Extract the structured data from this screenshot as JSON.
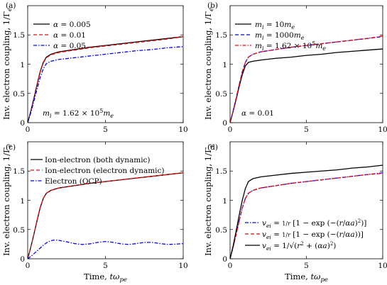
{
  "figure": {
    "x_label": "Time, tω_pe",
    "y_label": "Inv. electron coupling, 1/Γ_e"
  },
  "chart_data": [
    {
      "type": "line",
      "panel_label": "(a)",
      "xlim": [
        0,
        10
      ],
      "ylim": [
        0,
        2
      ],
      "xticks": [
        "0",
        "5",
        "10"
      ],
      "yticks": [
        "0",
        "0.5",
        "1",
        "1.5"
      ],
      "xlabel": "",
      "ylabel": "Inv. electron coupling, 1/Γ_e",
      "legend_position": "top-left",
      "annotation": "m_i = 1.62 × 10^5 m_e",
      "series": [
        {
          "name": "α = 0.005",
          "color": "#000000",
          "dash": "solid",
          "x": [
            0,
            0.2,
            0.4,
            0.6,
            0.8,
            1.0,
            1.2,
            1.5,
            2,
            3,
            4,
            5,
            6,
            7,
            8,
            9,
            10
          ],
          "y": [
            0,
            0.2,
            0.42,
            0.65,
            0.87,
            1.03,
            1.12,
            1.17,
            1.21,
            1.25,
            1.29,
            1.32,
            1.35,
            1.38,
            1.41,
            1.44,
            1.47
          ]
        },
        {
          "name": "α = 0.01",
          "color": "#ff0000",
          "dash": "dashed",
          "x": [
            0,
            0.2,
            0.4,
            0.6,
            0.8,
            1.0,
            1.2,
            1.5,
            2,
            3,
            4,
            5,
            6,
            7,
            8,
            9,
            10
          ],
          "y": [
            0,
            0.19,
            0.41,
            0.64,
            0.86,
            1.02,
            1.11,
            1.16,
            1.2,
            1.24,
            1.28,
            1.31,
            1.34,
            1.37,
            1.4,
            1.43,
            1.47
          ]
        },
        {
          "name": "α = 0.05",
          "color": "#0000ff",
          "dash": "dashdot",
          "x": [
            0,
            0.2,
            0.4,
            0.6,
            0.8,
            1.0,
            1.2,
            1.5,
            2,
            3,
            4,
            5,
            6,
            7,
            8,
            9,
            10
          ],
          "y": [
            0,
            0.17,
            0.37,
            0.57,
            0.77,
            0.92,
            1.01,
            1.05,
            1.08,
            1.11,
            1.14,
            1.17,
            1.2,
            1.23,
            1.25,
            1.28,
            1.3
          ]
        }
      ]
    },
    {
      "type": "line",
      "panel_label": "(b)",
      "xlim": [
        0,
        10
      ],
      "ylim": [
        0,
        2
      ],
      "xticks": [
        "0",
        "5",
        "10"
      ],
      "yticks": [
        "0",
        "0.5",
        "1",
        "1.5"
      ],
      "xlabel": "",
      "ylabel": "Inv. electron coupling, 1/Γ_e",
      "legend_position": "top-left",
      "annotation": "α = 0.01",
      "series": [
        {
          "name": "m_i = 10m_e",
          "color": "#000000",
          "dash": "solid",
          "x": [
            0,
            0.2,
            0.4,
            0.6,
            0.8,
            1.0,
            1.2,
            1.5,
            2,
            3,
            4,
            5,
            6,
            7,
            8,
            9,
            10
          ],
          "y": [
            0,
            0.19,
            0.4,
            0.62,
            0.82,
            0.97,
            1.03,
            1.05,
            1.07,
            1.1,
            1.12,
            1.15,
            1.17,
            1.2,
            1.22,
            1.24,
            1.26
          ]
        },
        {
          "name": "m_i = 1000m_e",
          "color": "#0000ff",
          "dash": "dashed",
          "x": [
            0,
            0.2,
            0.4,
            0.6,
            0.8,
            1.0,
            1.2,
            1.5,
            2,
            3,
            4,
            5,
            6,
            7,
            8,
            9,
            10
          ],
          "y": [
            0,
            0.2,
            0.42,
            0.65,
            0.87,
            1.03,
            1.12,
            1.17,
            1.21,
            1.25,
            1.29,
            1.32,
            1.35,
            1.38,
            1.41,
            1.44,
            1.47
          ]
        },
        {
          "name": "m_i = 1.62 × 10^5 m_e",
          "color": "#ff0000",
          "dash": "dashdot",
          "x": [
            0,
            0.2,
            0.4,
            0.6,
            0.8,
            1.0,
            1.2,
            1.5,
            2,
            3,
            4,
            5,
            6,
            7,
            8,
            9,
            10
          ],
          "y": [
            0,
            0.2,
            0.42,
            0.65,
            0.87,
            1.03,
            1.12,
            1.17,
            1.21,
            1.25,
            1.29,
            1.32,
            1.35,
            1.38,
            1.41,
            1.44,
            1.48
          ]
        }
      ]
    },
    {
      "type": "line",
      "panel_label": "(c)",
      "xlim": [
        0,
        10
      ],
      "ylim": [
        0,
        2
      ],
      "xticks": [
        "0",
        "5",
        "10"
      ],
      "yticks": [
        "0",
        "0.5",
        "1",
        "1.5"
      ],
      "xlabel": "Time, tω_pe",
      "ylabel": "Inv. electron coupling, 1/Γ_e",
      "legend_position": "top-left",
      "series": [
        {
          "name": "Ion-electron (both dynamic)",
          "color": "#000000",
          "dash": "solid",
          "x": [
            0,
            0.2,
            0.4,
            0.6,
            0.8,
            1.0,
            1.2,
            1.5,
            2,
            3,
            4,
            5,
            6,
            7,
            8,
            9,
            10
          ],
          "y": [
            0,
            0.2,
            0.42,
            0.65,
            0.87,
            1.03,
            1.12,
            1.17,
            1.21,
            1.25,
            1.29,
            1.32,
            1.35,
            1.38,
            1.41,
            1.44,
            1.47
          ]
        },
        {
          "name": "Ion-electron (electron dynamic)",
          "color": "#ff0000",
          "dash": "dashed",
          "x": [
            0,
            0.2,
            0.4,
            0.6,
            0.8,
            1.0,
            1.2,
            1.5,
            2,
            3,
            4,
            5,
            6,
            7,
            8,
            9,
            10
          ],
          "y": [
            0,
            0.2,
            0.42,
            0.65,
            0.87,
            1.03,
            1.12,
            1.17,
            1.21,
            1.25,
            1.29,
            1.32,
            1.35,
            1.38,
            1.41,
            1.44,
            1.47
          ]
        },
        {
          "name": "Electron (OCP)",
          "color": "#0000ff",
          "dash": "dashdot",
          "x": [
            0,
            0.25,
            0.5,
            0.75,
            1.0,
            1.25,
            1.5,
            1.75,
            2.0,
            2.5,
            3.0,
            3.5,
            4.0,
            4.5,
            5.0,
            5.5,
            6.0,
            6.5,
            7.0,
            7.5,
            8.0,
            8.5,
            9.0,
            9.5,
            10.0
          ],
          "y": [
            0,
            0.05,
            0.11,
            0.17,
            0.23,
            0.28,
            0.31,
            0.32,
            0.315,
            0.29,
            0.26,
            0.245,
            0.255,
            0.28,
            0.295,
            0.28,
            0.255,
            0.245,
            0.26,
            0.28,
            0.28,
            0.26,
            0.245,
            0.25,
            0.26
          ]
        }
      ]
    },
    {
      "type": "line",
      "panel_label": "(d)",
      "xlim": [
        0,
        10
      ],
      "ylim": [
        0,
        2
      ],
      "xticks": [
        "0",
        "5",
        "10"
      ],
      "yticks": [
        "0",
        "0.5",
        "1",
        "1.5"
      ],
      "xlabel": "Time, tω_pe",
      "ylabel": "Inv. electron coupling, 1/Γ_e",
      "legend_position": "bottom-right",
      "series": [
        {
          "name": "v_ei = (1/r)[1 − exp(−(r/αa)²)]",
          "color": "#0000ff",
          "dash": "dashdot",
          "x": [
            0,
            0.2,
            0.4,
            0.6,
            0.8,
            1.0,
            1.2,
            1.5,
            2,
            3,
            4,
            5,
            6,
            7,
            8,
            9,
            10
          ],
          "y": [
            0,
            0.2,
            0.42,
            0.65,
            0.87,
            1.03,
            1.12,
            1.17,
            1.21,
            1.25,
            1.29,
            1.32,
            1.35,
            1.38,
            1.41,
            1.44,
            1.47
          ]
        },
        {
          "name": "v_ei = (1/r)[1 − exp(−(r/αa))]",
          "color": "#ff0000",
          "dash": "dashed",
          "x": [
            0,
            0.2,
            0.4,
            0.6,
            0.8,
            1.0,
            1.2,
            1.5,
            2,
            3,
            4,
            5,
            6,
            7,
            8,
            9,
            10
          ],
          "y": [
            0,
            0.2,
            0.42,
            0.65,
            0.87,
            1.03,
            1.12,
            1.17,
            1.21,
            1.25,
            1.29,
            1.32,
            1.35,
            1.38,
            1.41,
            1.44,
            1.46
          ]
        },
        {
          "name": "v_ei = 1/√(r² + (αa)²)",
          "color": "#000000",
          "dash": "solid",
          "x": [
            0,
            0.2,
            0.4,
            0.6,
            0.8,
            1.0,
            1.2,
            1.5,
            2,
            3,
            4,
            5,
            6,
            7,
            8,
            9,
            10
          ],
          "y": [
            0,
            0.22,
            0.48,
            0.75,
            1.0,
            1.2,
            1.32,
            1.37,
            1.4,
            1.43,
            1.46,
            1.48,
            1.5,
            1.52,
            1.55,
            1.57,
            1.6
          ]
        }
      ]
    }
  ]
}
